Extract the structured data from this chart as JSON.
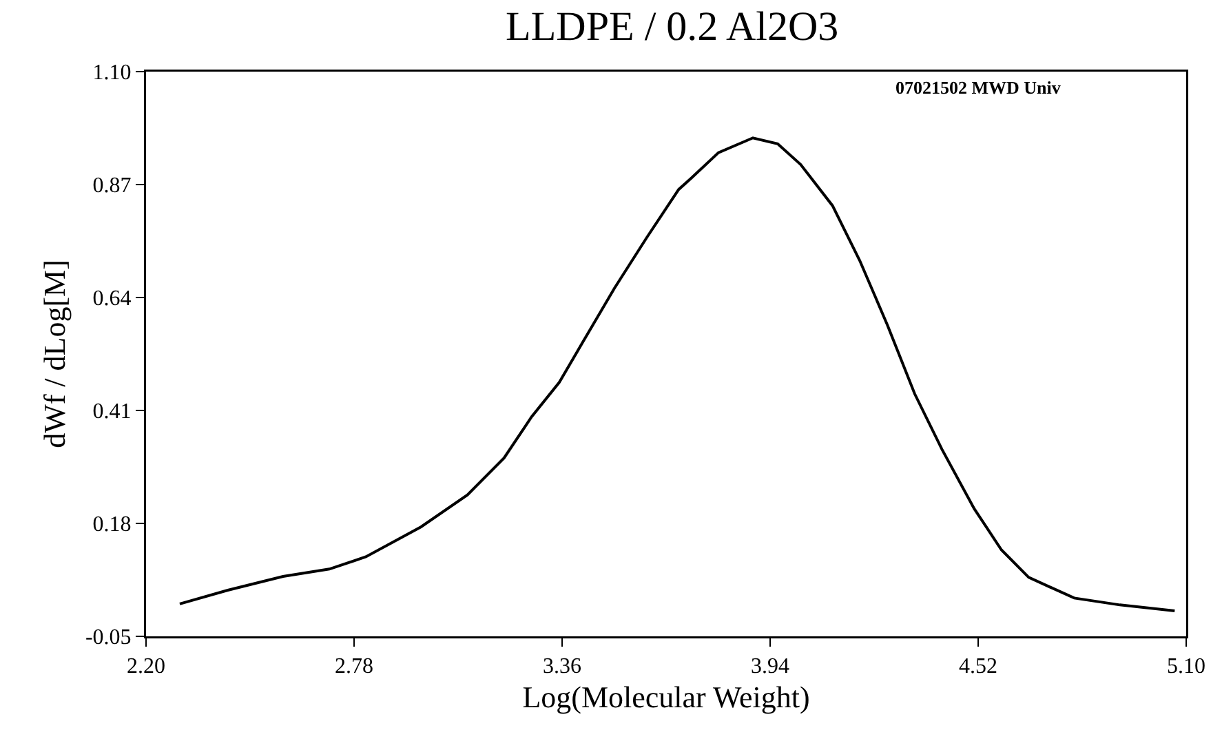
{
  "chart_data": {
    "type": "line",
    "title": "LLDPE / 0.2 Al2O3",
    "xlabel": "Log(Molecular Weight)",
    "ylabel": "dWf / dLog[M]",
    "annotations": [
      "07021502 MWD Univ"
    ],
    "x": [
      2.294,
      2.428,
      2.582,
      2.711,
      2.813,
      2.967,
      3.096,
      3.198,
      3.275,
      3.352,
      3.416,
      3.506,
      3.596,
      3.685,
      3.72,
      3.796,
      3.892,
      3.961,
      4.025,
      4.114,
      4.19,
      4.267,
      4.343,
      4.419,
      4.509,
      4.585,
      4.661,
      4.788,
      4.915,
      5.068
    ],
    "series": [
      {
        "color": "#000000",
        "values": [
          0.016,
          0.044,
          0.072,
          0.087,
          0.112,
          0.173,
          0.238,
          0.313,
          0.397,
          0.467,
          0.547,
          0.659,
          0.762,
          0.86,
          0.883,
          0.935,
          0.965,
          0.953,
          0.911,
          0.827,
          0.715,
          0.584,
          0.444,
          0.331,
          0.21,
          0.126,
          0.07,
          0.028,
          0.014,
          0.002
        ]
      }
    ],
    "xlim": [
      2.2,
      5.1
    ],
    "xticks": [
      {
        "value": 2.2,
        "label": "2.20"
      },
      {
        "value": 2.78,
        "label": "2.78"
      },
      {
        "value": 3.36,
        "label": "3.36"
      },
      {
        "value": 3.94,
        "label": "3.94"
      },
      {
        "value": 4.52,
        "label": "4.52"
      },
      {
        "value": 5.1,
        "label": "5.10"
      }
    ],
    "ylim": [
      -0.05,
      1.1
    ],
    "yticks": [
      {
        "value": -0.05,
        "label": "-0.05"
      },
      {
        "value": 0.18,
        "label": "0.18"
      },
      {
        "value": 0.41,
        "label": "0.41"
      },
      {
        "value": 0.64,
        "label": "0.64"
      },
      {
        "value": 0.87,
        "label": "0.87"
      },
      {
        "value": 1.1,
        "label": "1.10"
      }
    ],
    "marker": "none",
    "line_style": "solid"
  }
}
